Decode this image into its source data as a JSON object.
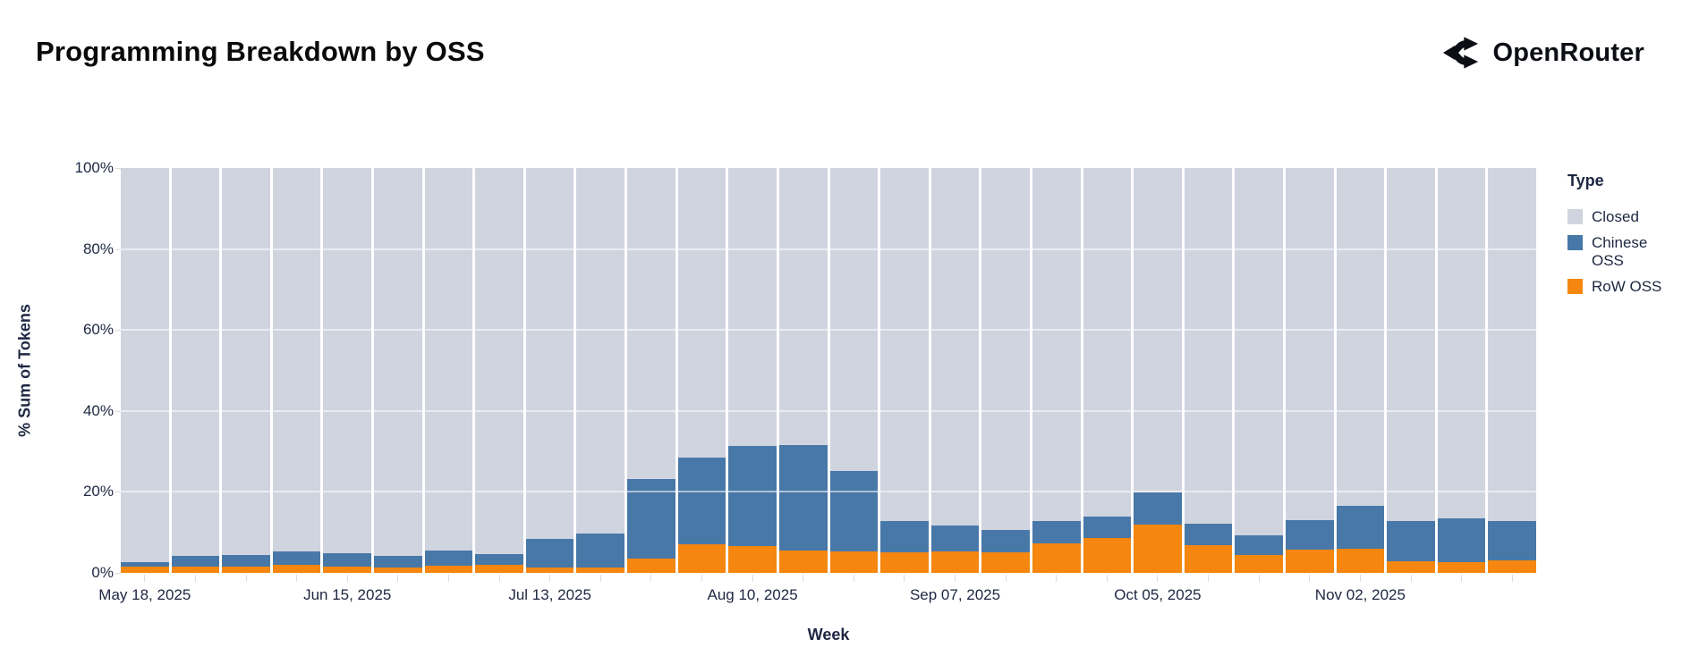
{
  "header": {
    "title": "Programming Breakdown by OSS",
    "brand": {
      "name": "OpenRouter",
      "icon": "openrouter-fork-icon"
    }
  },
  "chart_data": {
    "type": "bar",
    "stacked": true,
    "normalized": "percent",
    "title": "Programming Breakdown by OSS",
    "xlabel": "Week",
    "ylabel": "% Sum of Tokens",
    "ylim": [
      0,
      100
    ],
    "y_tick_values": [
      0,
      20,
      40,
      60,
      80,
      100
    ],
    "y_tick_labels": [
      "0%",
      "20%",
      "40%",
      "60%",
      "80%",
      "100%"
    ],
    "grid": true,
    "categories": [
      "May 18, 2025",
      "May 25, 2025",
      "Jun 01, 2025",
      "Jun 08, 2025",
      "Jun 15, 2025",
      "Jun 22, 2025",
      "Jun 29, 2025",
      "Jul 06, 2025",
      "Jul 13, 2025",
      "Jul 20, 2025",
      "Jul 27, 2025",
      "Aug 03, 2025",
      "Aug 10, 2025",
      "Aug 17, 2025",
      "Aug 24, 2025",
      "Aug 31, 2025",
      "Sep 07, 2025",
      "Sep 14, 2025",
      "Sep 21, 2025",
      "Sep 28, 2025",
      "Oct 05, 2025",
      "Oct 12, 2025",
      "Oct 19, 2025",
      "Oct 26, 2025",
      "Nov 02, 2025",
      "Nov 09, 2025",
      "Nov 16, 2025",
      "Nov 23, 2025"
    ],
    "x_tick_indices": [
      0,
      4,
      8,
      12,
      16,
      20,
      24
    ],
    "x_tick_labels": [
      "May 18, 2025",
      "Jun 15, 2025",
      "Jul 13, 2025",
      "Aug 10, 2025",
      "Sep 07, 2025",
      "Oct 05, 2025",
      "Nov 02, 2025"
    ],
    "series": [
      {
        "name": "Closed",
        "color": "#CFD4DF",
        "values": [
          97.4,
          95.9,
          95.6,
          94.8,
          95.1,
          95.9,
          94.4,
          95.3,
          91.7,
          90.2,
          76.8,
          71.6,
          68.6,
          68.5,
          74.9,
          87.1,
          88.2,
          89.3,
          87.1,
          86.1,
          80.1,
          87.8,
          90.7,
          86.9,
          83.4,
          87.2,
          86.5,
          87.3
        ]
      },
      {
        "name": "Chinese OSS",
        "color": "#4878A8",
        "values": [
          1.0,
          2.6,
          2.8,
          3.2,
          3.4,
          2.8,
          3.8,
          2.7,
          7.0,
          8.5,
          19.6,
          21.4,
          24.8,
          26.0,
          19.7,
          7.9,
          6.4,
          5.7,
          5.7,
          5.4,
          7.9,
          5.3,
          4.9,
          7.4,
          10.7,
          10.0,
          10.8,
          9.5
        ]
      },
      {
        "name": "RoW OSS",
        "color": "#F5860F",
        "values": [
          1.6,
          1.5,
          1.6,
          2.0,
          1.5,
          1.3,
          1.8,
          2.0,
          1.3,
          1.3,
          3.6,
          7.0,
          6.6,
          5.5,
          5.4,
          5.0,
          5.4,
          5.0,
          7.2,
          8.5,
          12.0,
          6.9,
          4.4,
          5.7,
          5.9,
          2.8,
          2.7,
          3.2
        ]
      }
    ],
    "legend": {
      "title": "Type",
      "position": "right"
    }
  }
}
